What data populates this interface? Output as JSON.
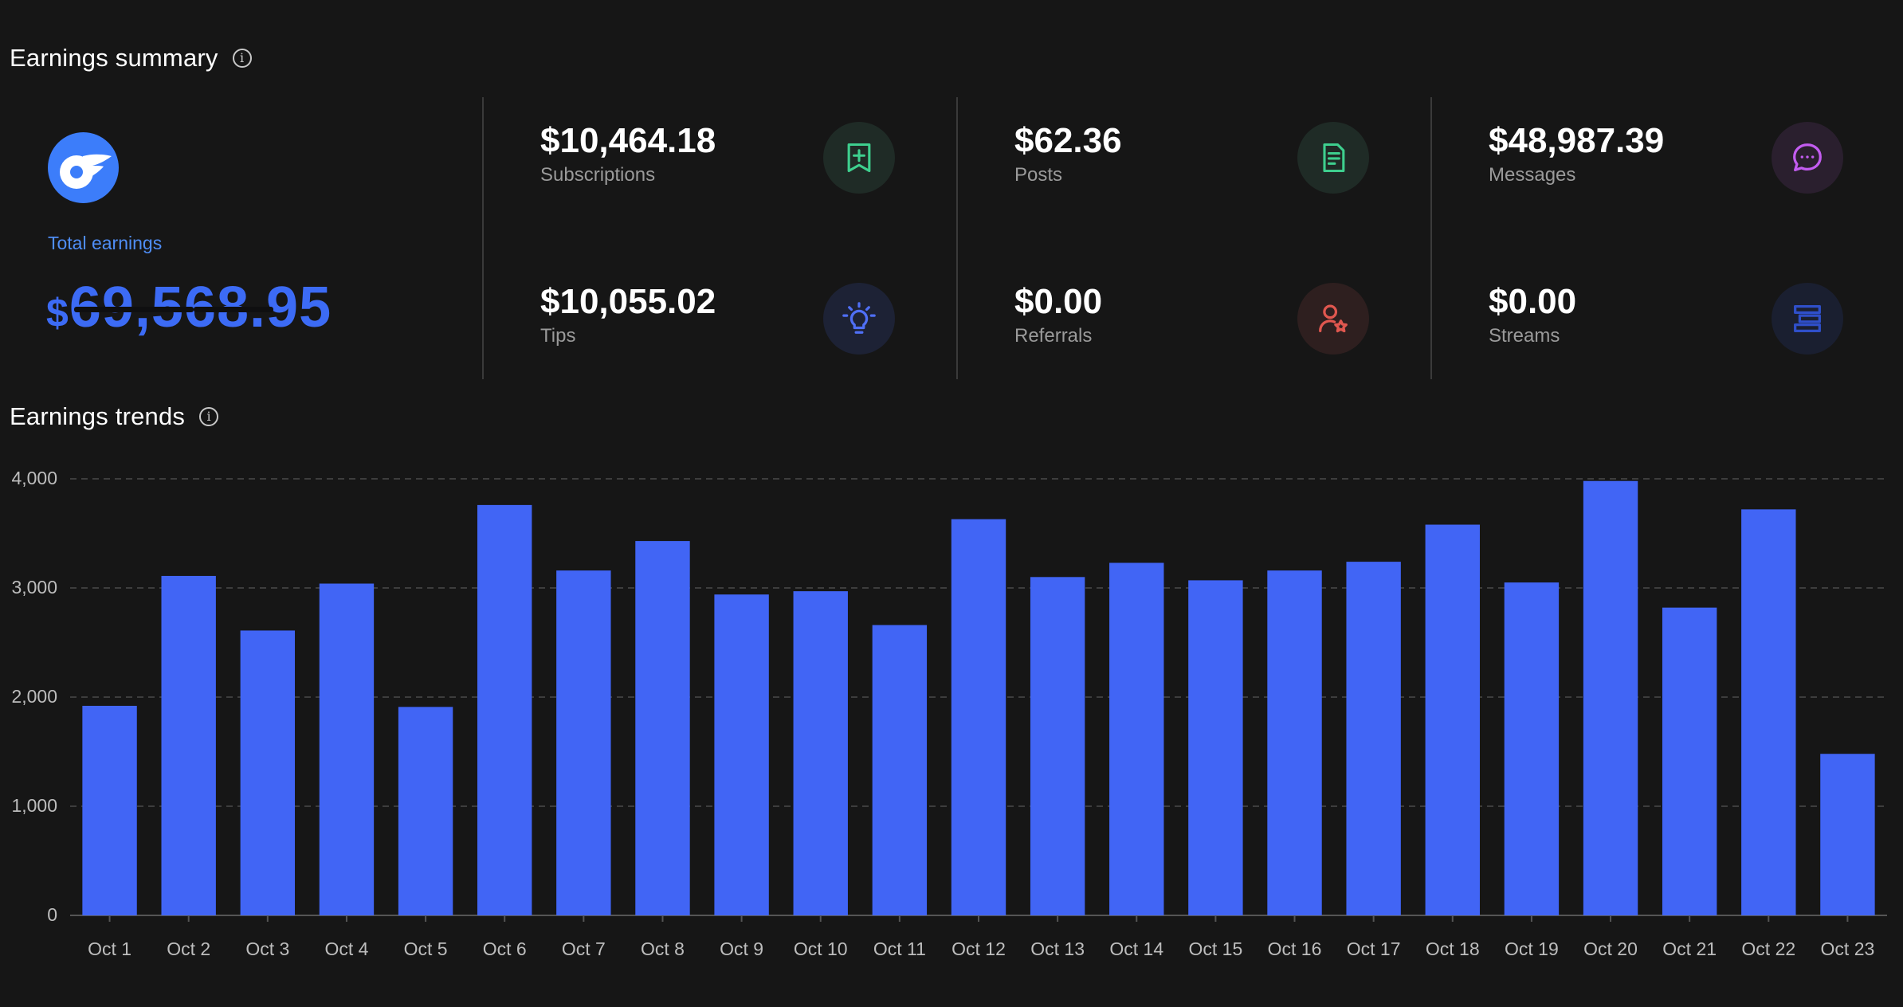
{
  "summary": {
    "title": "Earnings summary",
    "info_icon": "info-icon",
    "total": {
      "label": "Total earnings",
      "currency": "$",
      "value": "69,568.95",
      "logo_icon": "onlyfans-logo-icon"
    },
    "stats": [
      {
        "value": "$10,464.18",
        "label": "Subscriptions",
        "icon": "bookmark-plus-icon",
        "icon_color": "#3ecf8e"
      },
      {
        "value": "$62.36",
        "label": "Posts",
        "icon": "document-icon",
        "icon_color": "#3ecf8e"
      },
      {
        "value": "$48,987.39",
        "label": "Messages",
        "icon": "chat-bubble-icon",
        "icon_color": "#c35cf0"
      },
      {
        "value": "$10,055.02",
        "label": "Tips",
        "icon": "lightbulb-icon",
        "icon_color": "#4f6ff5"
      },
      {
        "value": "$0.00",
        "label": "Referrals",
        "icon": "user-star-icon",
        "icon_color": "#e0574f"
      },
      {
        "value": "$0.00",
        "label": "Streams",
        "icon": "stream-bars-icon",
        "icon_color": "#2f4fc9"
      }
    ]
  },
  "trends": {
    "title": "Earnings trends",
    "info_icon": "info-icon"
  },
  "colors": {
    "bar": "#4165f5",
    "background": "#161616",
    "accent": "#4f8ef7"
  },
  "chart_data": {
    "type": "bar",
    "categories": [
      "Oct 1",
      "Oct 2",
      "Oct 3",
      "Oct 4",
      "Oct 5",
      "Oct 6",
      "Oct 7",
      "Oct 8",
      "Oct 9",
      "Oct 10",
      "Oct 11",
      "Oct 12",
      "Oct 13",
      "Oct 14",
      "Oct 15",
      "Oct 16",
      "Oct 17",
      "Oct 18",
      "Oct 19",
      "Oct 20",
      "Oct 21",
      "Oct 22",
      "Oct 23"
    ],
    "values": [
      1920,
      3110,
      2610,
      3040,
      1910,
      3760,
      3160,
      3430,
      2940,
      2970,
      2660,
      3630,
      3100,
      3230,
      3070,
      3160,
      3240,
      3580,
      3050,
      3980,
      2820,
      3720,
      1480
    ],
    "yticks": [
      "0",
      "1,000",
      "2,000",
      "3,000",
      "4,000"
    ],
    "ylim": [
      0,
      4000
    ],
    "grid": true,
    "title": "",
    "xlabel": "",
    "ylabel": ""
  }
}
